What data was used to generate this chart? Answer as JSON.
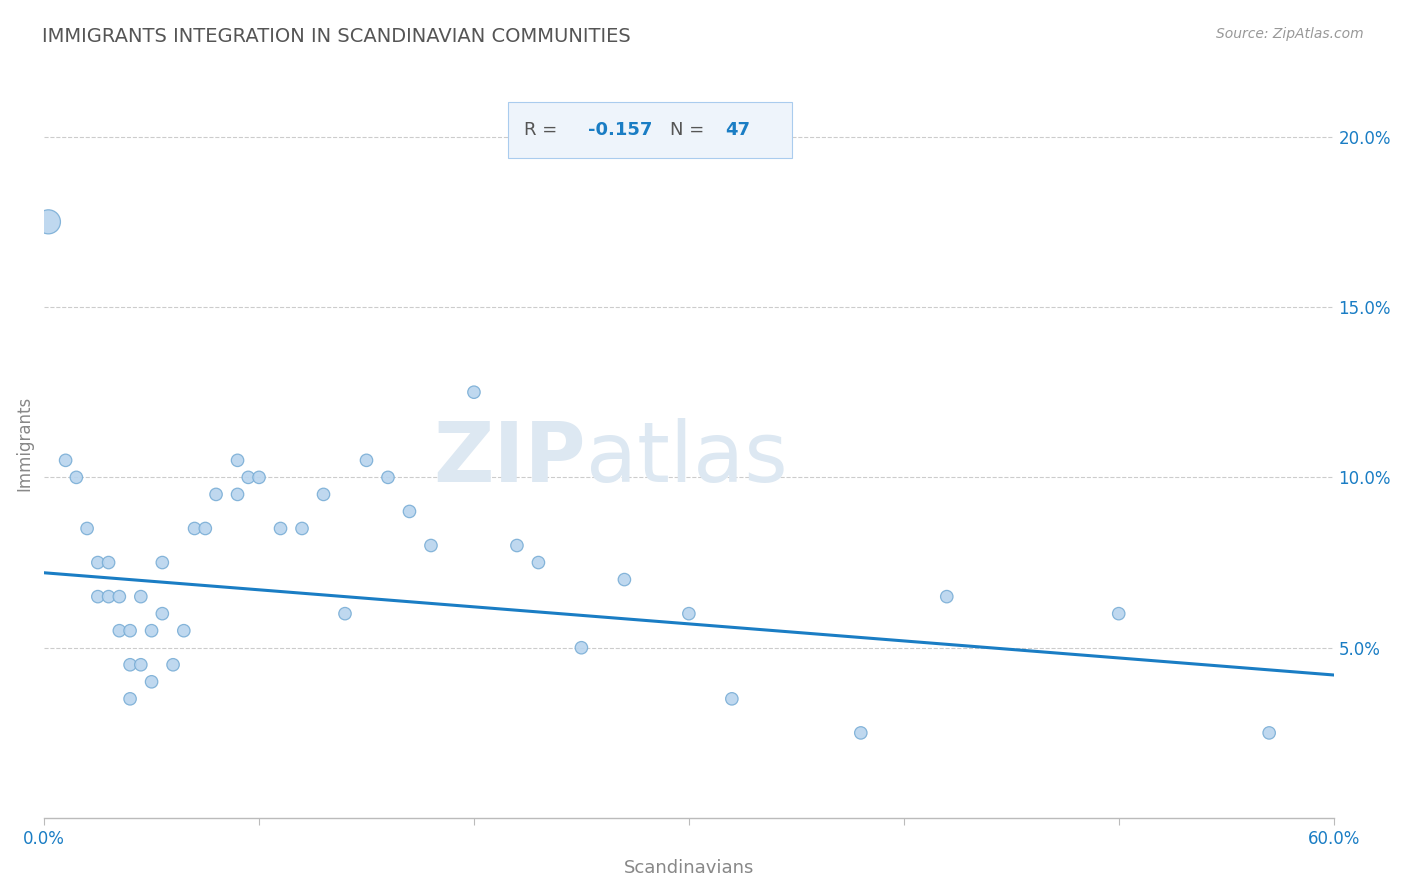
{
  "title": "IMMIGRANTS INTEGRATION IN SCANDINAVIAN COMMUNITIES",
  "source": "Source: ZipAtlas.com",
  "xlabel": "Scandinavians",
  "ylabel": "Immigrants",
  "R": -0.157,
  "N": 47,
  "xlim": [
    0.0,
    0.6
  ],
  "ylim": [
    0.0,
    0.22
  ],
  "xticks": [
    0.0,
    0.1,
    0.2,
    0.3,
    0.4,
    0.5,
    0.6
  ],
  "ytick_positions_right": [
    0.05,
    0.1,
    0.15,
    0.2
  ],
  "ytick_labels_right": [
    "5.0%",
    "10.0%",
    "15.0%",
    "20.0%"
  ],
  "scatter_x": [
    0.002,
    0.01,
    0.015,
    0.02,
    0.025,
    0.025,
    0.03,
    0.03,
    0.035,
    0.035,
    0.04,
    0.04,
    0.04,
    0.045,
    0.045,
    0.05,
    0.05,
    0.055,
    0.055,
    0.06,
    0.065,
    0.07,
    0.075,
    0.08,
    0.09,
    0.09,
    0.095,
    0.1,
    0.11,
    0.12,
    0.13,
    0.14,
    0.15,
    0.16,
    0.17,
    0.18,
    0.2,
    0.22,
    0.23,
    0.25,
    0.27,
    0.3,
    0.32,
    0.38,
    0.42,
    0.5,
    0.57
  ],
  "scatter_y": [
    0.175,
    0.105,
    0.1,
    0.085,
    0.075,
    0.065,
    0.075,
    0.065,
    0.065,
    0.055,
    0.055,
    0.045,
    0.035,
    0.045,
    0.065,
    0.055,
    0.04,
    0.075,
    0.06,
    0.045,
    0.055,
    0.085,
    0.085,
    0.095,
    0.105,
    0.095,
    0.1,
    0.1,
    0.085,
    0.085,
    0.095,
    0.06,
    0.105,
    0.1,
    0.09,
    0.08,
    0.125,
    0.08,
    0.075,
    0.05,
    0.07,
    0.06,
    0.035,
    0.025,
    0.065,
    0.06,
    0.025
  ],
  "scatter_sizes": [
    300,
    80,
    80,
    80,
    80,
    80,
    80,
    80,
    80,
    80,
    80,
    80,
    80,
    80,
    80,
    80,
    80,
    80,
    80,
    80,
    80,
    80,
    80,
    80,
    80,
    80,
    80,
    80,
    80,
    80,
    80,
    80,
    80,
    80,
    80,
    80,
    80,
    80,
    80,
    80,
    80,
    80,
    80,
    80,
    80,
    80,
    80
  ],
  "scatter_color": "#b8d4ee",
  "scatter_edge_color": "#7aaed6",
  "line_color": "#1a7dc4",
  "regression_y_start": 0.072,
  "regression_y_end": 0.042,
  "title_color": "#555555",
  "title_fontsize": 14,
  "axis_label_color": "#888888",
  "tick_color": "#bbbbbb",
  "grid_color": "#cccccc",
  "watermark_zip": "ZIP",
  "watermark_atlas": "atlas",
  "watermark_color_zip": "#dde8f2",
  "watermark_color_atlas": "#dde8f2",
  "r_value_color": "#1a7dc4",
  "n_value_color": "#1a7dc4",
  "stat_label_color": "#555555",
  "stat_box_facecolor": "#eef4fb",
  "stat_box_edgecolor": "#aaccee"
}
